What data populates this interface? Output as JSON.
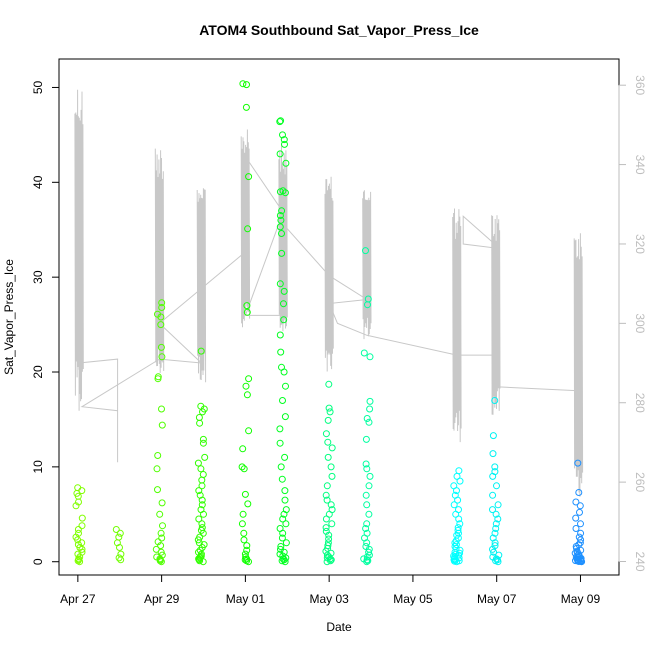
{
  "chart_data": {
    "type": "scatter",
    "title": "ATOM4 Southbound Sat_Vapor_Press_Ice",
    "xlabel": "Date",
    "ylabel": "Sat_Vapor_Press_Ice",
    "x_ticks": [
      "Apr 27",
      "Apr 29",
      "May 01",
      "May 03",
      "May 05",
      "May 07",
      "May 09"
    ],
    "x_tick_days": [
      0,
      2,
      4,
      6,
      8,
      10,
      12
    ],
    "xlim_days": [
      -0.45,
      12.92
    ],
    "y_ticks": [
      0,
      10,
      20,
      30,
      40,
      50
    ],
    "ylim": [
      -1.4,
      53.0
    ],
    "y2_ticks": [
      240,
      260,
      280,
      300,
      320,
      340,
      360
    ],
    "y2lim": [
      236.6,
      366.6
    ],
    "grid": false,
    "legend": "none",
    "point_groups": [
      {
        "x_center": 0.03,
        "color": "#80ff00",
        "values": [
          0.0,
          0.1,
          0.2,
          0.3,
          0.5,
          0.8,
          1.0,
          1.3,
          1.5,
          1.8,
          2.0,
          2.3,
          2.6,
          3.0,
          3.4,
          3.8,
          4.6,
          5.9,
          6.3,
          6.9,
          7.2,
          7.5,
          7.8
        ]
      },
      {
        "x_center": 0.95,
        "color": "#70ff00",
        "values": [
          0.2,
          0.4,
          0.8,
          1.5,
          2.0,
          2.6,
          3.0,
          3.4
        ]
      },
      {
        "x_center": 1.95,
        "color": "#50ff00",
        "values": [
          0.0,
          0.1,
          0.2,
          0.3,
          0.5,
          0.7,
          1.0,
          1.3,
          1.7,
          2.1,
          2.5,
          3.0,
          3.8,
          5.0,
          6.2,
          7.6,
          9.8,
          11.2,
          14.4,
          16.1,
          19.3,
          19.5,
          21.6,
          22.6,
          25.0,
          25.8,
          26.1,
          26.8,
          27.3
        ]
      },
      {
        "x_center": 2.95,
        "color": "#30ff00",
        "values": [
          0.0,
          0.1,
          0.2,
          0.3,
          0.4,
          0.5,
          0.6,
          0.8,
          1.0,
          1.2,
          1.5,
          1.8,
          2.0,
          2.3,
          2.6,
          3.0,
          3.3,
          3.6,
          4.0,
          4.5,
          5.0,
          5.5,
          6.0,
          6.5,
          7.0,
          7.5,
          8.0,
          8.6,
          9.2,
          9.8,
          10.4,
          11.0,
          12.5,
          12.9,
          14.6,
          15.2,
          15.8,
          16.1,
          16.4,
          22.2
        ]
      },
      {
        "x_center": 4.0,
        "color": "#10ff00",
        "values": [
          0.0,
          0.1,
          0.2,
          0.3,
          0.5,
          0.8,
          1.2,
          1.7,
          2.3,
          3.0,
          4.0,
          5.0,
          6.1,
          7.1,
          9.8,
          10.0,
          11.9,
          13.8,
          17.6,
          18.5,
          19.3,
          26.3,
          27.0,
          35.1,
          40.6,
          47.9,
          50.3,
          50.4
        ]
      },
      {
        "x_center": 4.9,
        "color": "#00ff20",
        "values": [
          0.0,
          0.1,
          0.2,
          0.3,
          0.4,
          0.6,
          0.8,
          1.0,
          1.3,
          1.6,
          2.0,
          2.5,
          3.0,
          3.5,
          4.0,
          4.5,
          5.0,
          5.5,
          6.5,
          7.5,
          8.7,
          10.0,
          11.0,
          12.5,
          14.0,
          15.3,
          17.0,
          18.5,
          20.0,
          20.5,
          22.1,
          23.9,
          25.5,
          27.2,
          28.5,
          29.3,
          32.5,
          34.6,
          35.3,
          36.0,
          36.5,
          37.0,
          38.9,
          39.0,
          39.1,
          42.0,
          43.0,
          44.0,
          44.5,
          45.0,
          46.4,
          46.5
        ]
      },
      {
        "x_center": 6.0,
        "color": "#00ff80",
        "values": [
          0.0,
          0.1,
          0.2,
          0.3,
          0.4,
          0.5,
          0.7,
          0.9,
          1.1,
          1.4,
          1.7,
          2.0,
          2.4,
          2.8,
          3.2,
          3.6,
          4.0,
          4.5,
          5.0,
          5.5,
          6.0,
          6.5,
          7.0,
          8.0,
          9.0,
          10.0,
          11.0,
          12.0,
          12.6,
          13.5,
          14.9,
          15.8,
          16.2,
          18.7
        ]
      },
      {
        "x_center": 6.9,
        "color": "#00ffa0",
        "values": [
          0.0,
          0.1,
          0.2,
          0.3,
          0.5,
          0.7,
          1.0,
          1.3,
          1.6,
          2.0,
          2.5,
          3.0,
          3.5,
          4.0,
          5.0,
          6.0,
          7.0,
          8.0,
          9.0,
          9.8,
          10.3,
          12.9,
          14.7,
          15.1,
          16.1,
          16.9,
          21.6,
          22.0,
          27.1,
          27.7,
          32.8
        ]
      },
      {
        "x_center": 9.05,
        "color": "#00ffff",
        "values": [
          0.0,
          0.05,
          0.1,
          0.15,
          0.2,
          0.3,
          0.4,
          0.5,
          0.6,
          0.7,
          0.8,
          0.9,
          1.0,
          1.2,
          1.4,
          1.6,
          1.8,
          2.0,
          2.2,
          2.5,
          2.8,
          3.0,
          3.3,
          3.6,
          4.0,
          4.5,
          5.0,
          5.5,
          6.0,
          6.5,
          7.0,
          7.5,
          8.0,
          8.5,
          9.0,
          9.6
        ]
      },
      {
        "x_center": 9.98,
        "color": "#00f2f2",
        "values": [
          0.0,
          0.1,
          0.2,
          0.3,
          0.5,
          0.7,
          1.0,
          1.3,
          1.7,
          2.0,
          2.5,
          3.0,
          3.5,
          4.0,
          4.5,
          5.0,
          5.5,
          6.0,
          7.0,
          8.0,
          9.0,
          9.5,
          10.0,
          11.4,
          13.3,
          17.0
        ]
      },
      {
        "x_center": 11.95,
        "color": "#1e90ff",
        "values": [
          0.0,
          0.02,
          0.05,
          0.08,
          0.1,
          0.12,
          0.15,
          0.18,
          0.2,
          0.25,
          0.3,
          0.35,
          0.4,
          0.45,
          0.5,
          0.6,
          0.7,
          0.8,
          0.9,
          1.0,
          1.1,
          1.2,
          1.4,
          1.6,
          1.8,
          2.0,
          2.3,
          2.6,
          3.0,
          3.5,
          4.0,
          4.6,
          5.2,
          5.9,
          6.3,
          7.3,
          10.4
        ]
      }
    ],
    "secondary_series": {
      "color": "#c8c8c8",
      "spike_groups": [
        {
          "x_center": 0.03,
          "top": 361,
          "bottom": 278
        },
        {
          "x_center": 1.95,
          "top": 345,
          "bottom": 286
        },
        {
          "x_center": 2.95,
          "top": 337,
          "bottom": 285
        },
        {
          "x_center": 4.0,
          "top": 349,
          "bottom": 299
        },
        {
          "x_center": 4.9,
          "top": 345,
          "bottom": 295
        },
        {
          "x_center": 6.0,
          "top": 337,
          "bottom": 286
        },
        {
          "x_center": 6.9,
          "top": 335,
          "bottom": 296
        },
        {
          "x_center": 9.05,
          "top": 330,
          "bottom": 270
        },
        {
          "x_center": 9.98,
          "top": 328,
          "bottom": 276
        },
        {
          "x_center": 11.95,
          "top": 324,
          "bottom": 256
        }
      ],
      "connector_path": [
        [
          0.03,
          278
        ],
        [
          0.03,
          290
        ],
        [
          0.95,
          291
        ],
        [
          0.95,
          265
        ],
        [
          0.95,
          278
        ],
        [
          0.1,
          279
        ],
        [
          1.95,
          291
        ],
        [
          2.95,
          290
        ],
        [
          1.95,
          300
        ],
        [
          4.0,
          318
        ],
        [
          4.0,
          342
        ],
        [
          4.9,
          328
        ],
        [
          4.0,
          302
        ],
        [
          4.9,
          302
        ],
        [
          4.9,
          325
        ],
        [
          6.0,
          312
        ],
        [
          6.9,
          306
        ],
        [
          6.0,
          305
        ],
        [
          6.2,
          300
        ],
        [
          6.9,
          297
        ],
        [
          9.05,
          292
        ],
        [
          9.95,
          292
        ],
        [
          9.95,
          320
        ],
        [
          9.2,
          327
        ],
        [
          9.2,
          320
        ],
        [
          9.95,
          319
        ],
        [
          10.05,
          284
        ],
        [
          11.95,
          283
        ]
      ]
    }
  }
}
